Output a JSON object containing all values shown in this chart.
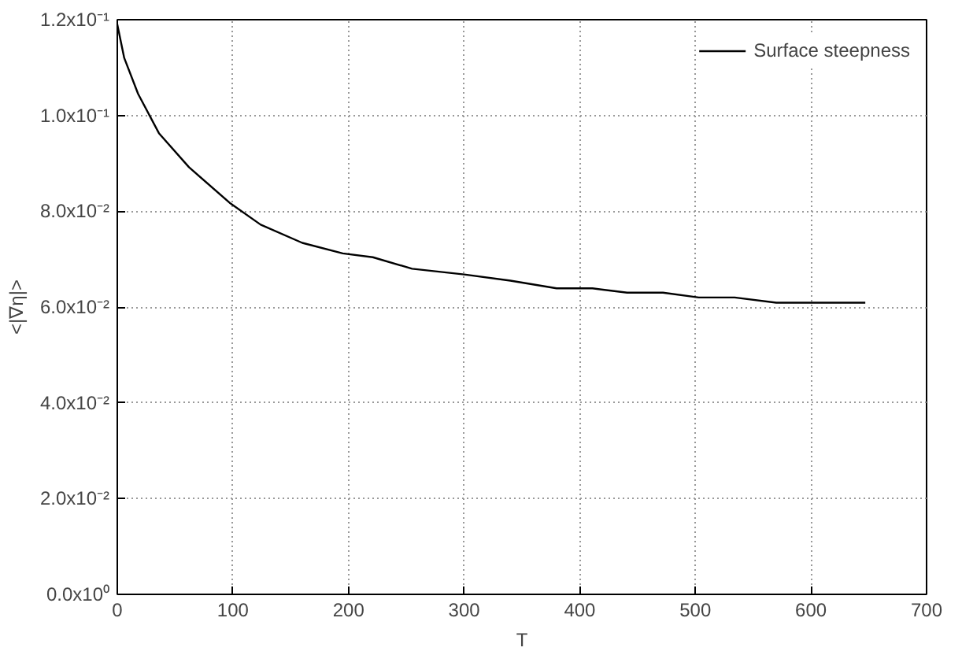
{
  "chart_data": {
    "type": "line",
    "xlabel": "T",
    "ylabel": "<|∇η|>",
    "series": [
      {
        "name": "Surface steepness",
        "color": "#000000",
        "x": [
          0,
          6,
          18,
          36,
          62,
          98,
          124,
          160,
          195,
          221,
          255,
          300,
          340,
          380,
          411,
          441,
          472,
          503,
          534,
          570,
          647
        ],
        "values": [
          0.119,
          0.112,
          0.1045,
          0.0963,
          0.0892,
          0.0816,
          0.0772,
          0.0734,
          0.0712,
          0.0704,
          0.068,
          0.0668,
          0.0655,
          0.0639,
          0.0639,
          0.063,
          0.063,
          0.062,
          0.062,
          0.0609,
          0.0609
        ]
      }
    ],
    "xlim": [
      0,
      700
    ],
    "xticks": [
      0,
      100,
      200,
      300,
      400,
      500,
      600,
      700
    ],
    "ylim": [
      0,
      0.12
    ],
    "yticks": [
      {
        "value": 0,
        "label": "0.0x10⁰"
      },
      {
        "value": 0.02,
        "label": "2.0x10⁻²"
      },
      {
        "value": 0.04,
        "label": "4.0x10⁻²"
      },
      {
        "value": 0.06,
        "label": "6.0x10⁻²"
      },
      {
        "value": 0.08,
        "label": "8.0x10⁻²"
      },
      {
        "value": 0.1,
        "label": "1.0x10⁻¹"
      },
      {
        "value": 0.12,
        "label": "1.2x10⁻¹"
      }
    ],
    "grid": true,
    "legend": "top right",
    "line_style": "solid",
    "marker": "none"
  }
}
